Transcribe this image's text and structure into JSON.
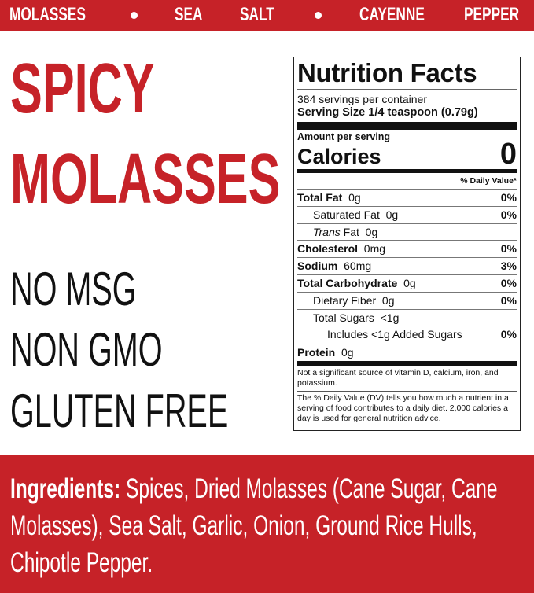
{
  "brand_color": "#c62228",
  "topbar": {
    "words": [
      "MOLASSES",
      "SEA",
      "SALT",
      "CAYENNE",
      "PEPPER"
    ],
    "separator_icon": "bullet-dot"
  },
  "product": {
    "name_line1": "SPICY",
    "name_line2": "MOLASSES"
  },
  "claims": [
    "NO MSG",
    "NON GMO",
    "GLUTEN FREE"
  ],
  "nutrition": {
    "title": "Nutrition Facts",
    "servings": "384 servings per container",
    "serving_size_label": "Serving Size",
    "serving_size": "1/4 teaspoon (0.79g)",
    "amount_per_serving": "Amount per serving",
    "calories_label": "Calories",
    "calories": "0",
    "dv_header": "% Daily Value*",
    "rows": [
      {
        "label": "Total Fat",
        "amount": "0g",
        "dv": "0%"
      },
      {
        "label": "Saturated Fat",
        "amount": "0g",
        "dv": "0%"
      },
      {
        "label_italic": "Trans",
        "label": "Fat",
        "amount": "0g",
        "dv": ""
      },
      {
        "label": "Cholesterol",
        "amount": "0mg",
        "dv": "0%"
      },
      {
        "label": "Sodium",
        "amount": "60mg",
        "dv": "3%"
      },
      {
        "label": "Total Carbohydrate",
        "amount": "0g",
        "dv": "0%"
      },
      {
        "label": "Dietary Fiber",
        "amount": "0g",
        "dv": "0%"
      },
      {
        "label": "Total Sugars",
        "amount": "<1g",
        "dv": ""
      },
      {
        "label": "Includes <1g Added Sugars",
        "amount": "",
        "dv": "0%"
      },
      {
        "label": "Protein",
        "amount": "0g",
        "dv": ""
      }
    ],
    "footnote1": "Not a significant source of vitamin D, calcium, iron, and potassium.",
    "footnote2": "The % Daily Value (DV) tells you how much a nutrient in a serving of food contributes to a daily diet. 2,000 calories a day is used for general nutrition advice."
  },
  "ingredients": {
    "label": "Ingredients:",
    "text": "Spices, Dried Molasses (Cane Sugar, Cane Molasses), Sea Salt, Garlic, Onion, Ground Rice Hulls, Chipotle Pepper."
  }
}
